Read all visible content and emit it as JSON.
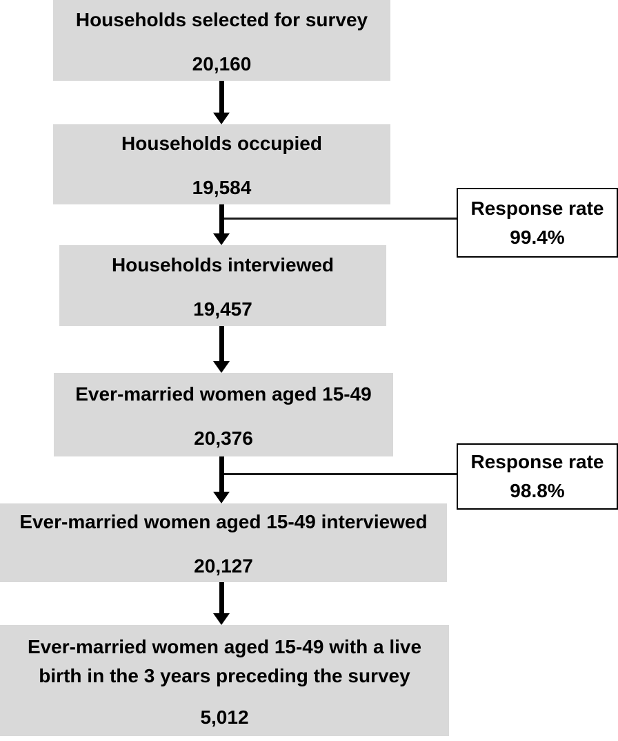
{
  "figure": {
    "type": "flowchart",
    "colors": {
      "background": "#ffffff",
      "node_fill": "#d9d9d9",
      "text": "#000000",
      "note_fill": "#ffffff",
      "note_border": "#000000",
      "arrow": "#000000"
    },
    "nodes": [
      {
        "label": "Households selected for survey",
        "value": "20,160"
      },
      {
        "label": "Households occupied",
        "value": "19,584"
      },
      {
        "label": "Households interviewed",
        "value": "19,457"
      },
      {
        "label": "Ever-married women aged 15-49",
        "value": "20,376"
      },
      {
        "label": "Ever-married women aged 15-49 interviewed",
        "value": "20,127"
      },
      {
        "label": "Ever-married women aged 15-49 with a live\nbirth in the 3 years preceding the survey",
        "value": "5,012"
      }
    ],
    "notes": [
      {
        "title": "Response rate",
        "value": "99.4%"
      },
      {
        "title": "Response rate",
        "value": "98.8%"
      }
    ]
  }
}
